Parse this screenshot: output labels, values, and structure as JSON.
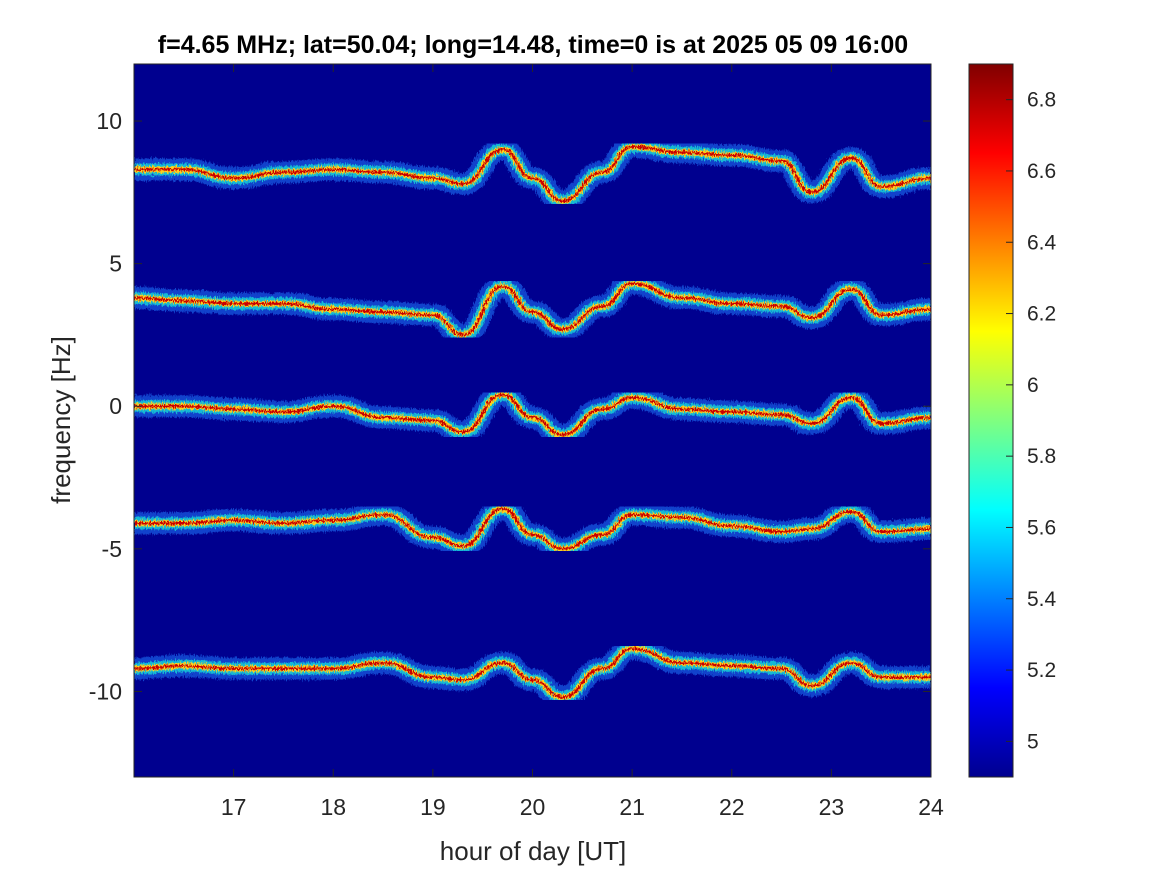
{
  "chart_data": {
    "type": "heatmap",
    "title": "f=4.65 MHz;  lat=50.04; long=14.48, time=0 is at 2025 05 09 16:00",
    "xlabel": "hour of day [UT]",
    "ylabel": "frequency [Hz]",
    "xlim": [
      16.0,
      24.0
    ],
    "ylim": [
      -13.0,
      12.0
    ],
    "xticks": [
      "17",
      "18",
      "19",
      "20",
      "21",
      "22",
      "23",
      "24"
    ],
    "xtick_values": [
      17,
      18,
      19,
      20,
      21,
      22,
      23,
      24
    ],
    "yticks": [
      "10",
      "5",
      "0",
      "-5",
      "-10"
    ],
    "ytick_values": [
      10,
      5,
      0,
      -5,
      -10
    ],
    "background_color": "#00008f",
    "colormap": "jet",
    "colorbar": {
      "range": [
        4.9,
        6.9
      ],
      "ticks": [
        "6.8",
        "6.6",
        "6.4",
        "6.2",
        "6",
        "5.8",
        "5.6",
        "5.4",
        "5.2",
        "5"
      ],
      "tick_values": [
        6.8,
        6.6,
        6.4,
        6.2,
        6.0,
        5.8,
        5.6,
        5.4,
        5.2,
        5.0
      ]
    },
    "series": [
      {
        "hours": [
          16.0,
          16.5,
          17.0,
          17.5,
          18.0,
          18.5,
          19.0,
          19.3,
          19.7,
          20.0,
          20.3,
          20.7,
          21.0,
          21.5,
          22.0,
          22.5,
          22.8,
          23.2,
          23.5,
          24.0
        ],
        "freq_hz": [
          8.3,
          8.3,
          8.0,
          8.2,
          8.3,
          8.2,
          8.0,
          7.8,
          9.0,
          8.0,
          7.2,
          8.2,
          9.1,
          8.9,
          8.8,
          8.6,
          7.5,
          8.7,
          7.7,
          8.0
        ]
      },
      {
        "hours": [
          16.0,
          16.5,
          17.0,
          17.5,
          18.0,
          18.5,
          19.0,
          19.3,
          19.7,
          20.0,
          20.3,
          20.7,
          21.0,
          21.5,
          22.0,
          22.5,
          22.8,
          23.2,
          23.5,
          24.0
        ],
        "freq_hz": [
          3.8,
          3.7,
          3.6,
          3.6,
          3.4,
          3.3,
          3.2,
          2.5,
          4.2,
          3.3,
          2.7,
          3.5,
          4.3,
          3.8,
          3.6,
          3.5,
          3.1,
          4.1,
          3.2,
          3.4
        ]
      },
      {
        "hours": [
          16.0,
          16.5,
          17.0,
          17.5,
          18.0,
          18.5,
          19.0,
          19.3,
          19.7,
          20.0,
          20.3,
          20.7,
          21.0,
          21.5,
          22.0,
          22.5,
          22.8,
          23.2,
          23.5,
          24.0
        ],
        "freq_hz": [
          0.0,
          0.0,
          -0.1,
          -0.2,
          0.0,
          -0.4,
          -0.5,
          -0.9,
          0.4,
          -0.4,
          -1.0,
          -0.1,
          0.3,
          -0.1,
          -0.2,
          -0.3,
          -0.6,
          0.3,
          -0.6,
          -0.4
        ]
      },
      {
        "hours": [
          16.0,
          16.5,
          17.0,
          17.5,
          18.0,
          18.5,
          19.0,
          19.3,
          19.7,
          20.0,
          20.3,
          20.7,
          21.0,
          21.5,
          22.0,
          22.5,
          22.8,
          23.2,
          23.5,
          24.0
        ],
        "freq_hz": [
          -4.1,
          -4.1,
          -4.0,
          -4.1,
          -4.0,
          -3.8,
          -4.6,
          -4.9,
          -3.6,
          -4.5,
          -5.0,
          -4.5,
          -3.8,
          -3.9,
          -4.2,
          -4.4,
          -4.3,
          -3.7,
          -4.4,
          -4.3
        ]
      },
      {
        "hours": [
          16.0,
          16.5,
          17.0,
          17.5,
          18.0,
          18.5,
          19.0,
          19.3,
          19.7,
          20.0,
          20.3,
          20.7,
          21.0,
          21.5,
          22.0,
          22.5,
          22.8,
          23.2,
          23.5,
          24.0
        ],
        "freq_hz": [
          -9.2,
          -9.1,
          -9.2,
          -9.2,
          -9.2,
          -9.0,
          -9.5,
          -9.6,
          -9.0,
          -9.6,
          -10.2,
          -9.2,
          -8.5,
          -9.0,
          -9.1,
          -9.2,
          -9.8,
          -9.0,
          -9.5,
          -9.5
        ]
      }
    ]
  }
}
